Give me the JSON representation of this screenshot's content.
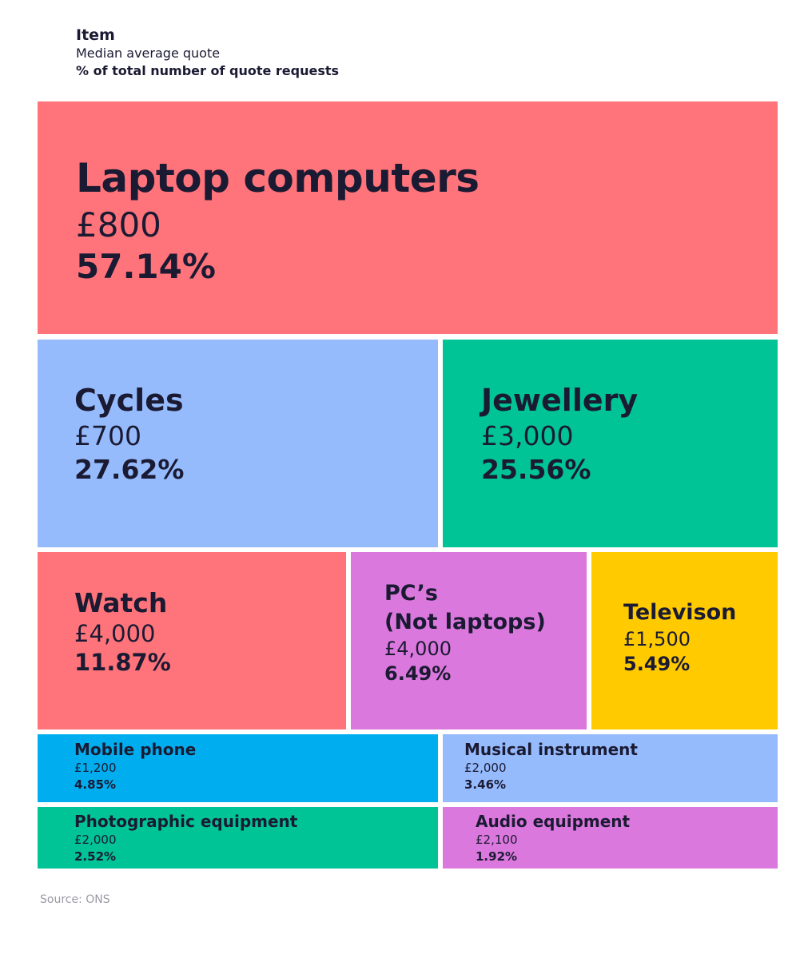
{
  "legend": {
    "title": "Item",
    "line2": "Median average quote",
    "line3": "% of total number of quote requests"
  },
  "chart_data": {
    "type": "treemap",
    "items": [
      {
        "name": "Laptop computers",
        "price": "£800",
        "pct": "57.14%",
        "value": 57.14,
        "color": "#ff747a"
      },
      {
        "name": "Cycles",
        "price": "£700",
        "pct": "27.62%",
        "value": 27.62,
        "color": "#95bbfd"
      },
      {
        "name": "Jewellery",
        "price": "£3,000",
        "pct": "25.56%",
        "value": 25.56,
        "color": "#00c396"
      },
      {
        "name": "Watch",
        "price": "£4,000",
        "pct": "11.87%",
        "value": 11.87,
        "color": "#ff747a"
      },
      {
        "name": "PC’s\n(Not laptops)",
        "price": "£4,000",
        "pct": "6.49%",
        "value": 6.49,
        "color": "#db78dd"
      },
      {
        "name": "Televison",
        "price": "£1,500",
        "pct": "5.49%",
        "value": 5.49,
        "color": "#ffcb00"
      },
      {
        "name": "Mobile phone",
        "price": "£1,200",
        "pct": "4.85%",
        "value": 4.85,
        "color": "#00aeef"
      },
      {
        "name": "Musical instrument",
        "price": "£2,000",
        "pct": "3.46%",
        "value": 3.46,
        "color": "#95bbfd"
      },
      {
        "name": "Photographic equipment",
        "price": "£2,000",
        "pct": "2.52%",
        "value": 2.52,
        "color": "#00c396"
      },
      {
        "name": "Audio equipment",
        "price": "£2,100",
        "pct": "1.92%",
        "value": 1.92,
        "color": "#db78dd"
      }
    ]
  },
  "source": "Source: ONS"
}
